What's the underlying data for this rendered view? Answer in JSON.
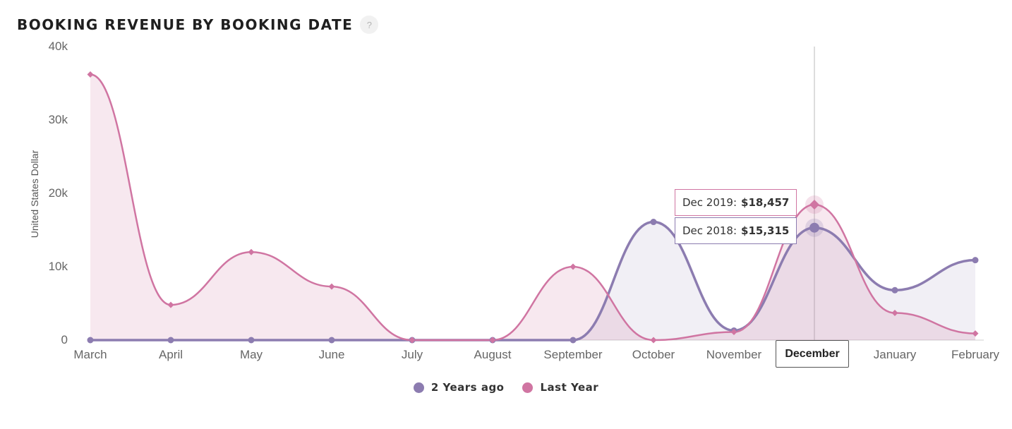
{
  "header": {
    "title": "BOOKING REVENUE BY BOOKING DATE",
    "help_label": "?"
  },
  "colors": {
    "two_years_ago": "#8c7cb0",
    "last_year": "#d075a2",
    "grid": "#e6e6e6",
    "axis_text": "#666666"
  },
  "chart_data": {
    "type": "area",
    "title": "BOOKING REVENUE BY BOOKING DATE",
    "ylabel": "United States Dollar",
    "xlabel": "",
    "ylim": [
      0,
      40000
    ],
    "yticks": [
      0,
      10000,
      20000,
      30000,
      40000
    ],
    "ytick_labels": [
      "0",
      "10k",
      "20k",
      "30k",
      "40k"
    ],
    "categories": [
      "March",
      "April",
      "May",
      "June",
      "July",
      "August",
      "September",
      "October",
      "November",
      "December",
      "January",
      "February"
    ],
    "series": [
      {
        "name": "2 Years ago",
        "marker": "circle",
        "values": [
          0,
          0,
          0,
          0,
          0,
          0,
          0,
          16100,
          1300,
          15315,
          6800,
          10900
        ]
      },
      {
        "name": "Last Year",
        "marker": "diamond",
        "values": [
          36200,
          4800,
          12000,
          7300,
          0,
          0,
          10000,
          0,
          1100,
          18457,
          3700,
          900
        ]
      }
    ],
    "legend_position": "bottom"
  },
  "tooltips": [
    {
      "label": "Dec 2019:",
      "value": "$18,457"
    },
    {
      "label": "Dec 2018:",
      "value": "$15,315"
    }
  ],
  "highlight": {
    "category": "December"
  }
}
